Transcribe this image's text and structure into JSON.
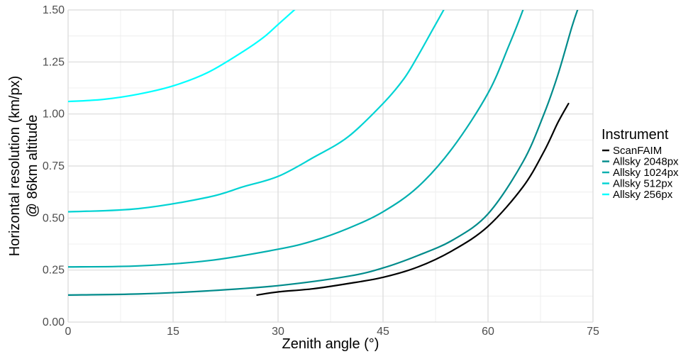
{
  "chart_data": {
    "type": "line",
    "title": "",
    "xlabel": "Zenith angle (°)",
    "ylabel": [
      "Horizontal resolution (km/px)",
      "@ 86km altitude"
    ],
    "xlim": [
      0,
      75
    ],
    "ylim": [
      0,
      1.5
    ],
    "x_ticks": [
      0,
      15,
      30,
      45,
      60,
      75
    ],
    "x_tick_labels": [
      "0",
      "15",
      "30",
      "45",
      "60",
      "75"
    ],
    "y_ticks": [
      0,
      0.25,
      0.5,
      0.75,
      1.0,
      1.25,
      1.5
    ],
    "y_tick_labels": [
      "0.00",
      "0.25",
      "0.50",
      "0.75",
      "1.00",
      "1.25",
      "1.50"
    ],
    "grid": true,
    "legend": {
      "title": "Instrument",
      "placement": "right"
    },
    "series": [
      {
        "name": "ScanFAIM",
        "color": "#000000",
        "x": [
          27,
          30,
          35,
          40,
          45,
          50,
          55,
          60,
          65,
          68,
          70,
          71.5
        ],
        "y": [
          0.13,
          0.145,
          0.16,
          0.185,
          0.215,
          0.265,
          0.345,
          0.46,
          0.65,
          0.82,
          0.96,
          1.05
        ]
      },
      {
        "name": "Allsky 2048px",
        "color": "#008b8b",
        "x": [
          0,
          10,
          20,
          30,
          40,
          45,
          50,
          55,
          60,
          65,
          68,
          70,
          72,
          73
        ],
        "y": [
          0.13,
          0.135,
          0.15,
          0.175,
          0.22,
          0.26,
          0.32,
          0.395,
          0.52,
          0.77,
          1.0,
          1.19,
          1.42,
          1.52
        ]
      },
      {
        "name": "Allsky 1024px",
        "color": "#00afaf",
        "x": [
          0,
          10,
          20,
          30,
          35,
          40,
          45,
          50,
          55,
          60,
          63,
          65,
          66.5
        ],
        "y": [
          0.265,
          0.27,
          0.295,
          0.35,
          0.39,
          0.45,
          0.53,
          0.65,
          0.84,
          1.1,
          1.33,
          1.5,
          1.65
        ]
      },
      {
        "name": "Allsky 512px",
        "color": "#00d3d3",
        "x": [
          0,
          10,
          20,
          25,
          30,
          35,
          40,
          45,
          48,
          50,
          52,
          54
        ],
        "y": [
          0.53,
          0.545,
          0.6,
          0.65,
          0.7,
          0.79,
          0.89,
          1.05,
          1.17,
          1.28,
          1.4,
          1.52
        ]
      },
      {
        "name": "Allsky 256px",
        "color": "#00ffff",
        "x": [
          0,
          5,
          10,
          15,
          20,
          25,
          28,
          30,
          33
        ],
        "y": [
          1.06,
          1.07,
          1.095,
          1.135,
          1.2,
          1.3,
          1.37,
          1.43,
          1.52
        ]
      }
    ]
  }
}
